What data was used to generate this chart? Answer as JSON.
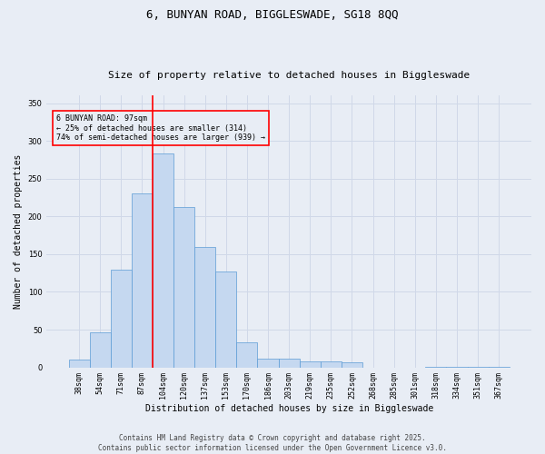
{
  "title": "6, BUNYAN ROAD, BIGGLESWADE, SG18 8QQ",
  "subtitle": "Size of property relative to detached houses in Biggleswade",
  "xlabel": "Distribution of detached houses by size in Biggleswade",
  "ylabel": "Number of detached properties",
  "categories": [
    "38sqm",
    "54sqm",
    "71sqm",
    "87sqm",
    "104sqm",
    "120sqm",
    "137sqm",
    "153sqm",
    "170sqm",
    "186sqm",
    "203sqm",
    "219sqm",
    "235sqm",
    "252sqm",
    "268sqm",
    "285sqm",
    "301sqm",
    "318sqm",
    "334sqm",
    "351sqm",
    "367sqm"
  ],
  "values": [
    10,
    47,
    130,
    231,
    284,
    212,
    159,
    127,
    33,
    11,
    11,
    8,
    8,
    7,
    0,
    0,
    0,
    1,
    1,
    1,
    1
  ],
  "bar_color": "#c5d8f0",
  "bar_edge_color": "#5b9bd5",
  "bar_width": 1.0,
  "grid_color": "#d0d8e8",
  "bg_color": "#e8edf5",
  "vline_color": "red",
  "vline_x": 3.5,
  "annotation_text": "6 BUNYAN ROAD: 97sqm\n← 25% of detached houses are smaller (314)\n74% of semi-detached houses are larger (939) →",
  "ylim": [
    0,
    360
  ],
  "yticks": [
    0,
    50,
    100,
    150,
    200,
    250,
    300,
    350
  ],
  "title_fontsize": 9,
  "subtitle_fontsize": 8,
  "xlabel_fontsize": 7,
  "ylabel_fontsize": 7,
  "tick_fontsize": 6,
  "annotation_fontsize": 6,
  "footer_fontsize": 5.5,
  "footer_line1": "Contains HM Land Registry data © Crown copyright and database right 2025.",
  "footer_line2": "Contains public sector information licensed under the Open Government Licence v3.0."
}
